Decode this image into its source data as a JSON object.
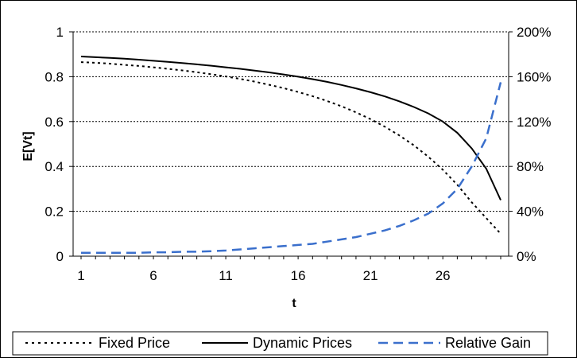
{
  "chart_data": {
    "type": "line",
    "title": "",
    "xlabel": "t",
    "ylabel": "E[Vt]",
    "y2label": "",
    "x": [
      1,
      2,
      3,
      4,
      5,
      6,
      7,
      8,
      9,
      10,
      11,
      12,
      13,
      14,
      15,
      16,
      17,
      18,
      19,
      20,
      21,
      22,
      23,
      24,
      25,
      26,
      27,
      28,
      29,
      30
    ],
    "x_tick_labels": [
      "1",
      "6",
      "11",
      "16",
      "21",
      "26"
    ],
    "ylim": [
      0,
      1
    ],
    "y_tick_labels": [
      "0",
      "0.2",
      "0.4",
      "0.6",
      "0.8",
      "1"
    ],
    "y2lim": [
      0,
      2
    ],
    "y2_tick_labels": [
      "0%",
      "40%",
      "80%",
      "120%",
      "160%",
      "200%"
    ],
    "grid": "horizontal dotted",
    "legend_position": "bottom",
    "series": [
      {
        "name": "Fixed Price",
        "axis": "left",
        "style": "dotted",
        "color": "#000000",
        "values": [
          0.865,
          0.862,
          0.858,
          0.853,
          0.848,
          0.842,
          0.835,
          0.828,
          0.82,
          0.811,
          0.801,
          0.79,
          0.778,
          0.764,
          0.749,
          0.732,
          0.713,
          0.692,
          0.668,
          0.641,
          0.611,
          0.577,
          0.538,
          0.494,
          0.443,
          0.385,
          0.318,
          0.24,
          0.17,
          0.1
        ]
      },
      {
        "name": "Dynamic Prices",
        "axis": "left",
        "style": "solid",
        "color": "#000000",
        "values": [
          0.89,
          0.887,
          0.884,
          0.88,
          0.876,
          0.871,
          0.866,
          0.861,
          0.855,
          0.849,
          0.842,
          0.835,
          0.827,
          0.819,
          0.81,
          0.8,
          0.789,
          0.777,
          0.763,
          0.748,
          0.731,
          0.712,
          0.69,
          0.665,
          0.636,
          0.6,
          0.55,
          0.48,
          0.39,
          0.25
        ]
      },
      {
        "name": "Relative Gain",
        "axis": "right",
        "style": "dashed",
        "color": "#3a6fcc",
        "values": [
          0.03,
          0.03,
          0.03,
          0.03,
          0.03,
          0.035,
          0.035,
          0.04,
          0.04,
          0.045,
          0.05,
          0.06,
          0.07,
          0.08,
          0.09,
          0.1,
          0.11,
          0.13,
          0.15,
          0.17,
          0.2,
          0.23,
          0.27,
          0.32,
          0.38,
          0.47,
          0.6,
          0.8,
          1.05,
          1.55
        ]
      }
    ]
  }
}
